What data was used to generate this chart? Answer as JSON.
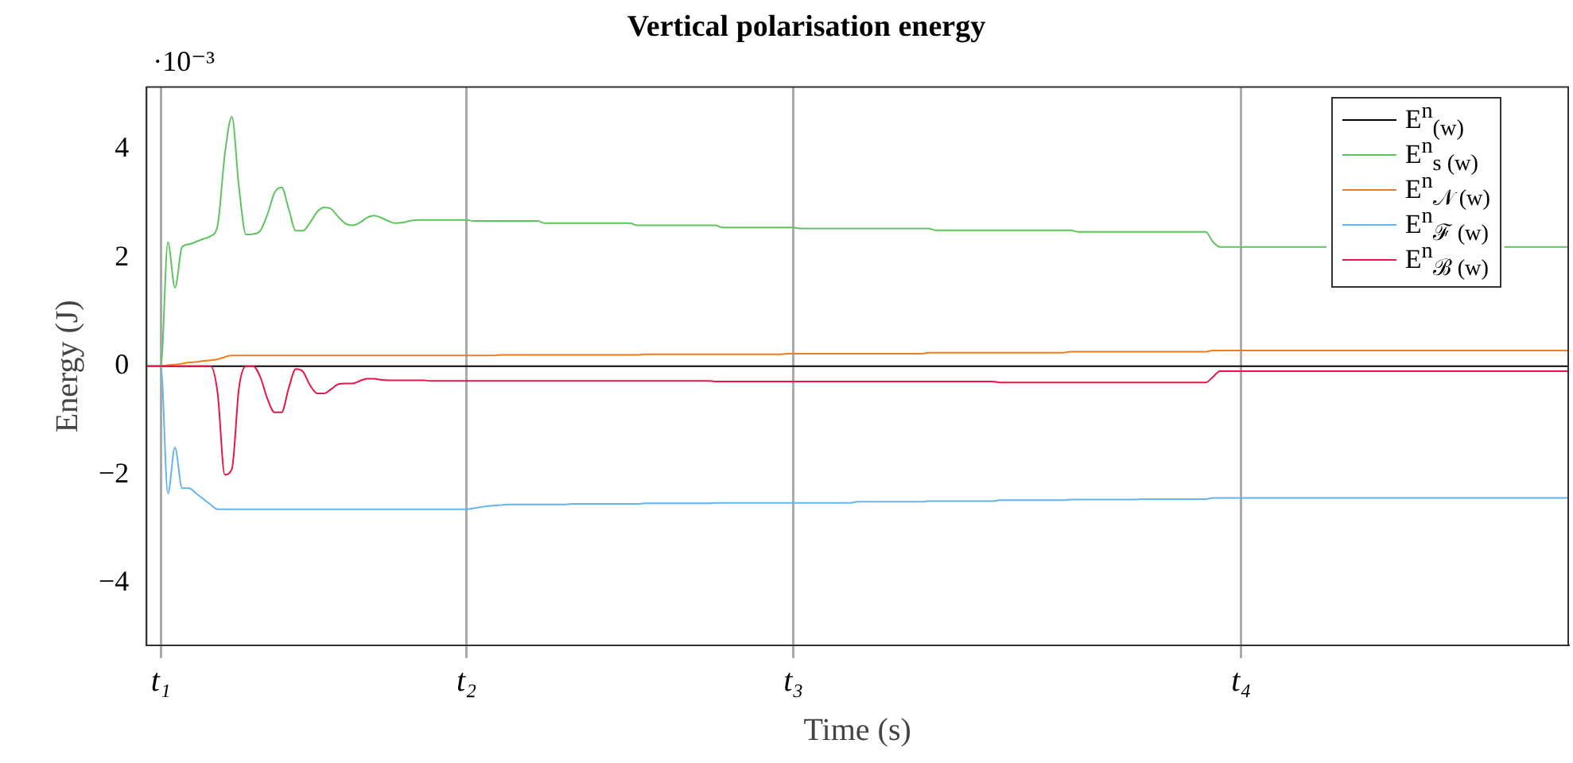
{
  "chart_data": {
    "type": "line",
    "title": "Vertical polarisation energy",
    "xlabel": "Time (s)",
    "ylabel": "Energy (J)",
    "annotations": [
      "·10⁻³"
    ],
    "categories": [
      null,
      null,
      "t₁",
      null,
      null,
      null,
      null,
      null,
      null,
      null,
      null,
      null,
      null,
      null,
      null,
      null,
      null,
      null,
      null,
      null,
      null,
      null,
      null,
      null,
      null,
      null,
      null,
      null,
      null,
      null,
      null,
      null,
      null,
      null,
      null,
      null,
      null,
      null,
      null,
      null,
      null,
      null,
      null,
      null,
      null,
      "t₂",
      null,
      null,
      null,
      null,
      null,
      null,
      null,
      null,
      null,
      null,
      null,
      null,
      null,
      null,
      null,
      null,
      null,
      null,
      null,
      null,
      null,
      null,
      null,
      null,
      null,
      null,
      null,
      null,
      null,
      null,
      null,
      null,
      null,
      null,
      null,
      null,
      null,
      null,
      null,
      null,
      null,
      null,
      null,
      null,
      null,
      "t₃",
      null,
      null,
      null,
      null,
      null,
      null,
      null,
      null,
      null,
      null,
      null,
      null,
      null,
      null,
      null,
      null,
      null,
      null,
      null,
      null,
      null,
      null,
      null,
      null,
      null,
      null,
      null,
      null,
      null,
      null,
      null,
      null,
      null,
      null,
      null,
      null,
      null,
      null,
      null,
      null,
      null,
      null,
      null,
      null,
      null,
      null,
      null,
      null,
      null,
      null,
      null,
      null,
      null,
      null,
      null,
      null,
      null,
      null,
      null,
      null,
      null,
      null,
      "t₄",
      null,
      null,
      null,
      null,
      null,
      null,
      null,
      null,
      null,
      null,
      null,
      null,
      null,
      null,
      null,
      null,
      null,
      null,
      null,
      null,
      null,
      null,
      null,
      null,
      null,
      null,
      null,
      null,
      null,
      null,
      null,
      null,
      null,
      null,
      null,
      null,
      null,
      null,
      null,
      null,
      null,
      null,
      null,
      null,
      null,
      null
    ],
    "ylim": [
      -5.15,
      5.15
    ],
    "yticks": [
      -4,
      -2,
      0,
      2,
      4
    ],
    "grid": "x",
    "legend": "top right",
    "marker": "none",
    "line_style": "solid",
    "series": [
      {
        "name": "E$^{n}$$_{(w)}$",
        "color": "#000000",
        "values": [
          0,
          0,
          0,
          0,
          0,
          0,
          0,
          0,
          0,
          0,
          0,
          0,
          0,
          0,
          0,
          0,
          0,
          0,
          0,
          0,
          0,
          0,
          0,
          0,
          0,
          0,
          0,
          0,
          0,
          0,
          0,
          0,
          0,
          0,
          0,
          0,
          0,
          0,
          0,
          0,
          0,
          0,
          0,
          0,
          0,
          0,
          0,
          0,
          0,
          0,
          0,
          0,
          0,
          0,
          0,
          0,
          0,
          0,
          0,
          0,
          0,
          0,
          0,
          0,
          0,
          0,
          0,
          0,
          0,
          0,
          0,
          0,
          0,
          0,
          0,
          0,
          0,
          0,
          0,
          0,
          0,
          0,
          0,
          0,
          0,
          0,
          0,
          0,
          0,
          0,
          0,
          0,
          0,
          0,
          0,
          0,
          0,
          0,
          0,
          0,
          0,
          0,
          0,
          0,
          0,
          0,
          0,
          0,
          0,
          0,
          0,
          0,
          0,
          0,
          0,
          0,
          0,
          0,
          0,
          0,
          0,
          0,
          0,
          0,
          0,
          0,
          0,
          0,
          0,
          0,
          0,
          0,
          0,
          0,
          0,
          0,
          0,
          0,
          0,
          0,
          0,
          0,
          0,
          0,
          0,
          0,
          0,
          0,
          0,
          0,
          0,
          0,
          0,
          0,
          0,
          0,
          0,
          0,
          0,
          0,
          0,
          0,
          0,
          0,
          0,
          0,
          0,
          0,
          0,
          0,
          0,
          0,
          0,
          0,
          0,
          0,
          0,
          0,
          0,
          0,
          0,
          0,
          0,
          0,
          0,
          0,
          0,
          0,
          0,
          0,
          0,
          0,
          0,
          0,
          0,
          0,
          0,
          0,
          0,
          0,
          0
        ]
      },
      {
        "name": "E$^{n}$$_{s (w)}$",
        "color": "#5ec45e",
        "values": [
          0,
          0,
          0,
          2.29,
          1.45,
          2.2,
          2.25,
          2.3,
          2.35,
          2.4,
          2.6,
          3.9,
          4.6,
          3.3,
          2.43,
          2.44,
          2.5,
          2.8,
          3.2,
          3.3,
          2.9,
          2.5,
          2.5,
          2.65,
          2.85,
          2.93,
          2.9,
          2.75,
          2.63,
          2.6,
          2.65,
          2.74,
          2.78,
          2.74,
          2.68,
          2.64,
          2.65,
          2.68,
          2.7,
          2.7,
          2.7,
          2.7,
          2.7,
          2.7,
          2.7,
          2.7,
          2.68,
          2.68,
          2.68,
          2.68,
          2.68,
          2.68,
          2.68,
          2.68,
          2.68,
          2.68,
          2.64,
          2.64,
          2.64,
          2.64,
          2.64,
          2.64,
          2.64,
          2.64,
          2.64,
          2.64,
          2.64,
          2.64,
          2.64,
          2.6,
          2.6,
          2.6,
          2.6,
          2.6,
          2.6,
          2.6,
          2.6,
          2.6,
          2.6,
          2.6,
          2.6,
          2.56,
          2.56,
          2.56,
          2.56,
          2.56,
          2.56,
          2.56,
          2.56,
          2.56,
          2.56,
          2.56,
          2.54,
          2.54,
          2.54,
          2.54,
          2.54,
          2.54,
          2.54,
          2.54,
          2.54,
          2.54,
          2.54,
          2.54,
          2.54,
          2.54,
          2.54,
          2.54,
          2.54,
          2.54,
          2.54,
          2.51,
          2.51,
          2.51,
          2.51,
          2.51,
          2.51,
          2.51,
          2.51,
          2.51,
          2.51,
          2.51,
          2.51,
          2.51,
          2.51,
          2.51,
          2.51,
          2.51,
          2.51,
          2.51,
          2.51,
          2.48,
          2.48,
          2.48,
          2.48,
          2.48,
          2.48,
          2.48,
          2.48,
          2.48,
          2.48,
          2.48,
          2.48,
          2.48,
          2.48,
          2.48,
          2.48,
          2.48,
          2.48,
          2.48,
          2.3,
          2.2,
          2.2,
          2.2,
          2.2,
          2.2,
          2.2,
          2.2,
          2.2,
          2.2,
          2.2,
          2.2,
          2.2,
          2.2,
          2.2,
          2.2,
          2.2,
          null,
          null,
          null,
          null,
          null,
          null,
          null,
          null,
          null,
          null,
          null,
          null,
          null,
          null,
          null,
          null,
          null,
          null,
          null,
          null,
          null,
          null,
          null,
          null,
          2.2,
          2.2,
          2.2,
          2.2,
          2.2,
          2.2,
          2.2,
          2.2,
          2.2,
          2.2
        ]
      },
      {
        "name": "E$^{n}$$_{𝒩 (w)}$",
        "color": "#f07d1e",
        "values": [
          0,
          0,
          0,
          0.02,
          0.03,
          0.05,
          0.07,
          0.08,
          0.1,
          0.11,
          0.13,
          0.17,
          0.2,
          0.2,
          0.2,
          0.2,
          0.2,
          0.2,
          0.2,
          0.2,
          0.2,
          0.2,
          0.2,
          0.2,
          0.2,
          0.2,
          0.2,
          0.2,
          0.2,
          0.2,
          0.2,
          0.2,
          0.2,
          0.2,
          0.2,
          0.2,
          0.2,
          0.2,
          0.2,
          0.2,
          0.2,
          0.2,
          0.2,
          0.2,
          0.2,
          0.2,
          0.2,
          0.2,
          0.2,
          0.2,
          0.21,
          0.21,
          0.21,
          0.21,
          0.21,
          0.21,
          0.21,
          0.21,
          0.21,
          0.21,
          0.21,
          0.21,
          0.21,
          0.21,
          0.21,
          0.21,
          0.21,
          0.21,
          0.21,
          0.21,
          0.22,
          0.22,
          0.22,
          0.22,
          0.22,
          0.22,
          0.22,
          0.22,
          0.22,
          0.22,
          0.22,
          0.22,
          0.22,
          0.22,
          0.22,
          0.22,
          0.22,
          0.22,
          0.22,
          0.22,
          0.23,
          0.23,
          0.23,
          0.23,
          0.23,
          0.23,
          0.23,
          0.23,
          0.23,
          0.23,
          0.23,
          0.23,
          0.23,
          0.23,
          0.23,
          0.23,
          0.23,
          0.23,
          0.23,
          0.23,
          0.25,
          0.25,
          0.25,
          0.25,
          0.25,
          0.25,
          0.25,
          0.25,
          0.25,
          0.25,
          0.25,
          0.25,
          0.25,
          0.25,
          0.25,
          0.25,
          0.25,
          0.25,
          0.25,
          0.25,
          0.27,
          0.27,
          0.27,
          0.27,
          0.27,
          0.27,
          0.27,
          0.27,
          0.27,
          0.27,
          0.27,
          0.27,
          0.27,
          0.27,
          0.27,
          0.27,
          0.27,
          0.27,
          0.27,
          0.27,
          0.29,
          0.29,
          0.29,
          0.29,
          0.29,
          0.29,
          0.29,
          0.29,
          0.29,
          0.29,
          0.29,
          0.29,
          0.29,
          0.29,
          0.29,
          0.29,
          0.29,
          0.29,
          0.29,
          0.29,
          0.29,
          0.29,
          0.29,
          0.29,
          0.29,
          0.29,
          0.29,
          0.29,
          0.29,
          0.29,
          0.29,
          0.29,
          0.29,
          0.29,
          0.29,
          0.29,
          0.29,
          0.29,
          0.29,
          0.29,
          0.29,
          0.29,
          0.29,
          0.29,
          0.29,
          0.29,
          0.29,
          0.29,
          0.29,
          0.29,
          0.29
        ]
      },
      {
        "name": "E$^{n}$$_{ℱ (w)}$",
        "color": "#64b4f0",
        "values": [
          0,
          0,
          0,
          -2.35,
          -1.5,
          -2.25,
          -2.25,
          -2.35,
          -2.45,
          -2.55,
          -2.64,
          -2.64,
          -2.64,
          -2.64,
          -2.64,
          -2.64,
          -2.64,
          -2.64,
          -2.64,
          -2.64,
          -2.64,
          -2.64,
          -2.64,
          -2.64,
          -2.64,
          -2.64,
          -2.64,
          -2.64,
          -2.64,
          -2.64,
          -2.64,
          -2.64,
          -2.64,
          -2.64,
          -2.64,
          -2.64,
          -2.64,
          -2.64,
          -2.64,
          -2.64,
          -2.64,
          -2.64,
          -2.64,
          -2.64,
          -2.64,
          -2.64,
          -2.62,
          -2.6,
          -2.58,
          -2.57,
          -2.56,
          -2.55,
          -2.55,
          -2.55,
          -2.55,
          -2.55,
          -2.55,
          -2.55,
          -2.55,
          -2.55,
          -2.54,
          -2.54,
          -2.54,
          -2.54,
          -2.54,
          -2.54,
          -2.54,
          -2.54,
          -2.54,
          -2.54,
          -2.53,
          -2.53,
          -2.53,
          -2.53,
          -2.53,
          -2.53,
          -2.53,
          -2.53,
          -2.53,
          -2.53,
          -2.52,
          -2.52,
          -2.52,
          -2.52,
          -2.52,
          -2.52,
          -2.52,
          -2.52,
          -2.52,
          -2.52,
          -2.52,
          -2.52,
          -2.52,
          -2.52,
          -2.52,
          -2.52,
          -2.52,
          -2.52,
          -2.52,
          -2.52,
          -2.5,
          -2.5,
          -2.5,
          -2.5,
          -2.5,
          -2.5,
          -2.5,
          -2.5,
          -2.5,
          -2.5,
          -2.49,
          -2.49,
          -2.49,
          -2.49,
          -2.49,
          -2.49,
          -2.49,
          -2.49,
          -2.49,
          -2.49,
          -2.47,
          -2.47,
          -2.47,
          -2.47,
          -2.47,
          -2.47,
          -2.47,
          -2.47,
          -2.47,
          -2.47,
          -2.46,
          -2.46,
          -2.46,
          -2.46,
          -2.46,
          -2.46,
          -2.46,
          -2.46,
          -2.46,
          -2.46,
          -2.45,
          -2.45,
          -2.45,
          -2.45,
          -2.45,
          -2.45,
          -2.45,
          -2.45,
          -2.45,
          -2.45,
          -2.43,
          -2.43,
          -2.43,
          -2.43,
          -2.43,
          -2.43,
          -2.43,
          -2.43,
          -2.43,
          -2.43,
          -2.43,
          -2.43,
          -2.43,
          -2.43,
          -2.43,
          -2.43,
          -2.43,
          -2.43,
          -2.43,
          -2.43,
          -2.43,
          -2.43,
          -2.43,
          -2.43,
          -2.43,
          -2.43,
          -2.43,
          -2.43,
          -2.43,
          -2.43,
          -2.43,
          -2.43,
          -2.43,
          -2.43,
          -2.43,
          -2.43,
          -2.43,
          -2.43,
          -2.43,
          -2.43,
          -2.43,
          -2.43,
          -2.43,
          -2.43,
          -2.43,
          -2.43,
          -2.43,
          -2.43,
          -2.43,
          -2.43,
          -2.43
        ]
      },
      {
        "name": "E$^{n}$$_{ℬ (w)}$",
        "color": "#e8144a",
        "values": [
          0,
          0,
          0,
          0,
          0,
          0,
          0,
          0,
          0,
          0,
          -0.5,
          -2.0,
          -1.9,
          -0.4,
          0,
          0,
          -0.2,
          -0.6,
          -0.85,
          -0.85,
          -0.4,
          -0.05,
          -0.1,
          -0.35,
          -0.5,
          -0.5,
          -0.42,
          -0.33,
          -0.32,
          -0.32,
          -0.27,
          -0.23,
          -0.23,
          -0.25,
          -0.26,
          -0.26,
          -0.26,
          -0.26,
          -0.26,
          -0.26,
          -0.27,
          -0.27,
          -0.27,
          -0.27,
          -0.27,
          -0.27,
          -0.27,
          -0.27,
          -0.27,
          -0.27,
          -0.27,
          -0.27,
          -0.27,
          -0.27,
          -0.27,
          -0.27,
          -0.27,
          -0.27,
          -0.27,
          -0.27,
          -0.27,
          -0.27,
          -0.27,
          -0.27,
          -0.27,
          -0.27,
          -0.27,
          -0.27,
          -0.27,
          -0.27,
          -0.27,
          -0.27,
          -0.27,
          -0.27,
          -0.27,
          -0.27,
          -0.27,
          -0.27,
          -0.27,
          -0.27,
          -0.28,
          -0.28,
          -0.28,
          -0.28,
          -0.28,
          -0.28,
          -0.28,
          -0.28,
          -0.28,
          -0.28,
          -0.28,
          -0.28,
          -0.28,
          -0.28,
          -0.28,
          -0.28,
          -0.28,
          -0.28,
          -0.28,
          -0.28,
          -0.28,
          -0.28,
          -0.28,
          -0.28,
          -0.28,
          -0.28,
          -0.28,
          -0.28,
          -0.28,
          -0.28,
          -0.28,
          -0.28,
          -0.28,
          -0.28,
          -0.28,
          -0.28,
          -0.28,
          -0.28,
          -0.28,
          -0.28,
          -0.3,
          -0.3,
          -0.3,
          -0.3,
          -0.3,
          -0.3,
          -0.3,
          -0.3,
          -0.3,
          -0.3,
          -0.3,
          -0.3,
          -0.3,
          -0.3,
          -0.3,
          -0.3,
          -0.3,
          -0.3,
          -0.3,
          -0.3,
          -0.3,
          -0.3,
          -0.3,
          -0.3,
          -0.3,
          -0.3,
          -0.3,
          -0.3,
          -0.3,
          -0.3,
          -0.2,
          -0.09,
          -0.09,
          -0.09,
          -0.09,
          -0.09,
          -0.09,
          -0.09,
          -0.09,
          -0.09,
          -0.09,
          -0.09,
          -0.09,
          -0.09,
          -0.09,
          -0.09,
          -0.09,
          -0.09,
          -0.09,
          -0.09,
          -0.09,
          -0.09,
          -0.09,
          -0.09,
          -0.09,
          -0.09,
          -0.09,
          -0.09,
          -0.09,
          -0.09,
          -0.09,
          -0.09,
          -0.09,
          -0.09,
          -0.09,
          -0.09,
          -0.09,
          -0.09,
          -0.09,
          -0.09,
          -0.09,
          -0.09,
          -0.09,
          -0.09,
          -0.09,
          -0.09,
          -0.09,
          -0.09,
          -0.09,
          -0.09,
          -0.09
        ]
      }
    ]
  }
}
